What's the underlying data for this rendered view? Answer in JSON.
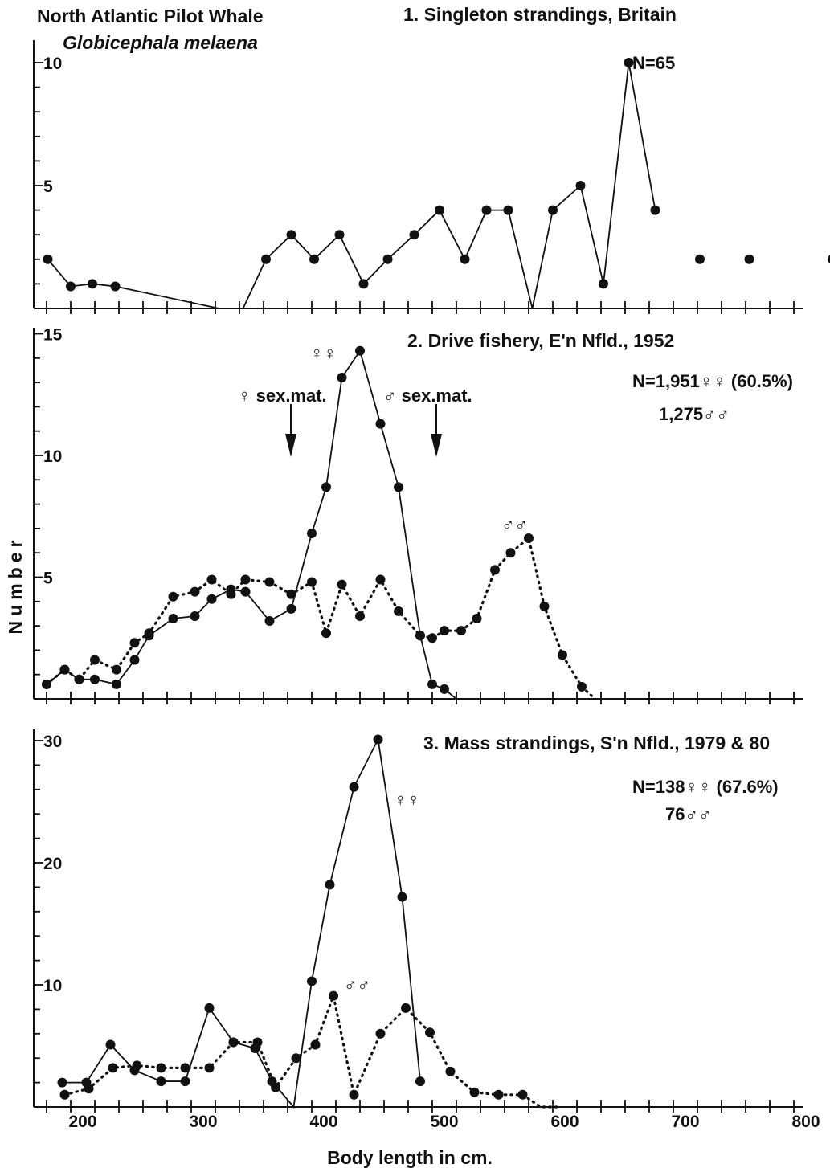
{
  "figure": {
    "title": "North Atlantic Pilot Whale",
    "subtitle": "Globicephala melaena",
    "ylabel": "Number",
    "xlabel": "Body length in cm.",
    "x_tick_labels": [
      "200",
      "300",
      "400",
      "500",
      "600",
      "700",
      "800"
    ]
  },
  "chart_data": [
    {
      "type": "line",
      "title": "1. Singleton strandings, Britain",
      "annotations": [
        "N=65"
      ],
      "y_tick_labels": [
        "5",
        "10"
      ],
      "xlim": [
        160,
        800
      ],
      "ylim": [
        0,
        10
      ],
      "series": [
        {
          "style": "solid",
          "x": [
            171,
            190,
            208,
            227,
            313,
            333,
            352,
            373,
            392,
            413,
            433,
            453,
            475,
            496,
            517,
            535,
            553,
            573,
            590,
            613,
            632,
            653,
            675
          ],
          "y": [
            2,
            0.9,
            1,
            0.9,
            0,
            0,
            2,
            3,
            2,
            3,
            1,
            2,
            3,
            4,
            2,
            4,
            4,
            0,
            4,
            5,
            1,
            10,
            4
          ],
          "points": [
            [
              171,
              2
            ],
            [
              190,
              0.9
            ],
            [
              208,
              1
            ],
            [
              227,
              0.9
            ],
            [
              352,
              2
            ],
            [
              373,
              3
            ],
            [
              392,
              2
            ],
            [
              413,
              3
            ],
            [
              433,
              1
            ],
            [
              453,
              2
            ],
            [
              475,
              3
            ],
            [
              496,
              4
            ],
            [
              517,
              2
            ],
            [
              535,
              4
            ],
            [
              553,
              4
            ],
            [
              590,
              4
            ],
            [
              613,
              5
            ],
            [
              632,
              1
            ],
            [
              653,
              10
            ],
            [
              675,
              4
            ],
            [
              712,
              2
            ],
            [
              753,
              2
            ],
            [
              822,
              2
            ]
          ]
        }
      ]
    },
    {
      "type": "line",
      "title": "2. Drive fishery, E'n Nfld., 1952",
      "annotations": [
        "N=1,951♀♀ (60.5%)",
        "1,275♂♂",
        "♀♀",
        "♂♂",
        "♀ sex.mat.",
        "♂ sex.mat."
      ],
      "y_tick_labels": [
        "5",
        "10",
        "15"
      ],
      "xlim": [
        160,
        800
      ],
      "ylim": [
        0,
        15
      ],
      "series": [
        {
          "name": "♀♀",
          "style": "solid",
          "x": [
            170,
            185,
            197,
            210,
            228,
            243,
            255,
            275,
            293,
            307,
            323,
            335,
            355,
            373,
            390,
            402,
            415,
            430,
            447,
            462,
            480,
            490,
            500,
            510
          ],
          "y": [
            0.6,
            1.2,
            0.8,
            0.8,
            0.6,
            1.6,
            2.6,
            3.3,
            3.4,
            4.1,
            4.5,
            4.4,
            3.2,
            3.7,
            6.8,
            8.7,
            13.2,
            14.3,
            11.3,
            8.7,
            2.6,
            0.6,
            0.4,
            0
          ]
        },
        {
          "name": "♂♂",
          "style": "dotted",
          "x": [
            170,
            185,
            197,
            210,
            228,
            243,
            255,
            275,
            293,
            307,
            323,
            335,
            355,
            373,
            390,
            402,
            415,
            430,
            447,
            462,
            480,
            490,
            500,
            514,
            527,
            542,
            555,
            570,
            583,
            598,
            614,
            625
          ],
          "y": [
            0.6,
            1.2,
            0.8,
            1.6,
            1.2,
            2.3,
            2.7,
            4.2,
            4.4,
            4.9,
            4.3,
            4.9,
            4.8,
            4.3,
            4.8,
            2.7,
            4.7,
            3.4,
            4.9,
            3.6,
            2.6,
            2.5,
            2.8,
            2.8,
            3.3,
            5.3,
            6.0,
            6.6,
            3.8,
            1.8,
            0.5,
            0
          ]
        }
      ]
    },
    {
      "type": "line",
      "title": "3. Mass strandings, S'n Nfld., 1979 & 80",
      "annotations": [
        "N=138♀♀ (67.6%)",
        "76♂♂",
        "♀♀",
        "♂♂"
      ],
      "y_tick_labels": [
        "10",
        "20",
        "30"
      ],
      "xlim": [
        160,
        800
      ],
      "ylim": [
        0,
        30
      ],
      "series": [
        {
          "name": "♀♀",
          "style": "solid",
          "x": [
            183,
            203,
            223,
            243,
            265,
            285,
            305,
            325,
            343,
            357,
            375,
            390,
            405,
            425,
            445,
            465,
            480
          ],
          "y": [
            2.0,
            2.0,
            5.1,
            3.0,
            2.1,
            2.1,
            8.1,
            5.3,
            4.8,
            2.1,
            0,
            10.3,
            18.2,
            26.2,
            30.1,
            17.2,
            2.1
          ]
        },
        {
          "name": "♂♂",
          "style": "dotted",
          "x": [
            185,
            205,
            225,
            245,
            265,
            285,
            305,
            325,
            345,
            360,
            377,
            393,
            408,
            425,
            447,
            468,
            488,
            505,
            525,
            545,
            565,
            580,
            595
          ],
          "y": [
            1.0,
            1.5,
            3.2,
            3.4,
            3.2,
            3.2,
            3.2,
            5.3,
            5.3,
            1.6,
            4.0,
            5.1,
            9.1,
            1.0,
            6.0,
            8.1,
            6.1,
            2.9,
            1.2,
            1.0,
            1.0,
            0,
            0
          ]
        }
      ]
    }
  ]
}
